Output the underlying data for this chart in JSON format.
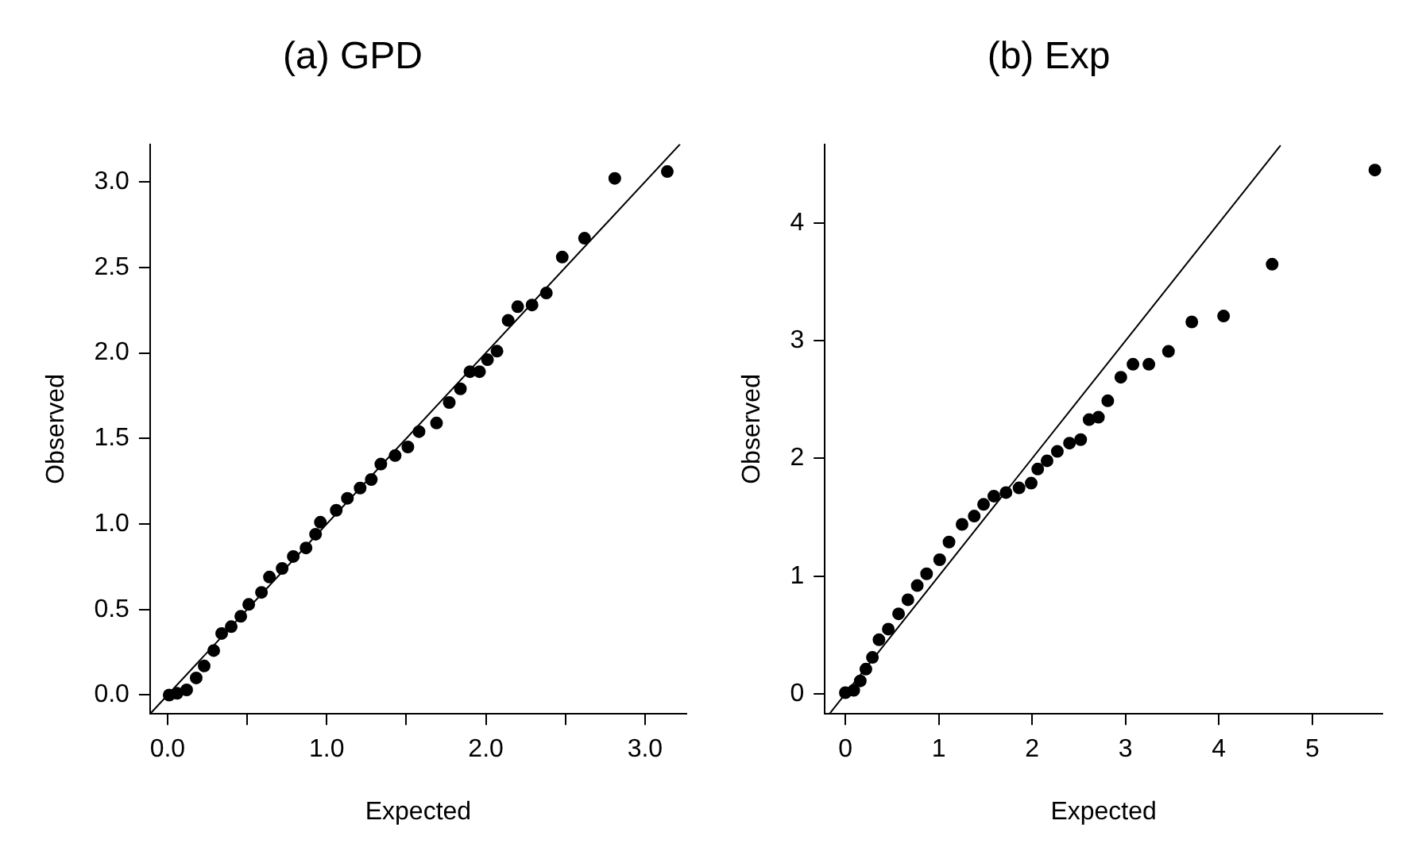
{
  "chart_data": [
    {
      "type": "scatter",
      "title": "(a) GPD",
      "xlabel": "Expected",
      "ylabel": "Observed",
      "xlim": [
        -0.11,
        3.26
      ],
      "ylim": [
        -0.11,
        3.22
      ],
      "xticks": [
        {
          "value": 0,
          "label": "0.0"
        },
        {
          "value": 0.5,
          "label": null
        },
        {
          "value": 1,
          "label": "1.0"
        },
        {
          "value": 1.5,
          "label": null
        },
        {
          "value": 2,
          "label": "2.0"
        },
        {
          "value": 2.5,
          "label": null
        },
        {
          "value": 3,
          "label": "3.0"
        }
      ],
      "yticks": [
        {
          "value": 0,
          "label": "0.0"
        },
        {
          "value": 0.5,
          "label": "0.5"
        },
        {
          "value": 1,
          "label": "1.0"
        },
        {
          "value": 1.5,
          "label": "1.5"
        },
        {
          "value": 2,
          "label": "2.0"
        },
        {
          "value": 2.5,
          "label": "2.5"
        },
        {
          "value": 3,
          "label": "3.0"
        }
      ],
      "grid": false,
      "legend": false,
      "marker": "circle",
      "series": [
        {
          "type": "scatter",
          "color": "#000000",
          "x": [
            0.01,
            0.06,
            0.12,
            0.18,
            0.23,
            0.29,
            0.34,
            0.4,
            0.46,
            0.51,
            0.59,
            0.64,
            0.72,
            0.79,
            0.87,
            0.93,
            0.96,
            1.06,
            1.13,
            1.21,
            1.28,
            1.34,
            1.43,
            1.51,
            1.58,
            1.69,
            1.77,
            1.84,
            1.9,
            1.96,
            2.01,
            2.07,
            2.14,
            2.2,
            2.29,
            2.38,
            2.48,
            2.62,
            2.81,
            3.14
          ],
          "values": [
            0.0,
            0.01,
            0.03,
            0.1,
            0.17,
            0.26,
            0.36,
            0.4,
            0.46,
            0.53,
            0.6,
            0.69,
            0.74,
            0.81,
            0.86,
            0.94,
            1.01,
            1.08,
            1.15,
            1.21,
            1.26,
            1.35,
            1.4,
            1.45,
            1.54,
            1.59,
            1.71,
            1.79,
            1.89,
            1.89,
            1.96,
            2.01,
            2.19,
            2.27,
            2.28,
            2.35,
            2.56,
            2.67,
            3.02,
            3.06
          ]
        },
        {
          "type": "line",
          "color": "#000000",
          "marker": "none",
          "x": [
            -0.11,
            3.22
          ],
          "values": [
            -0.11,
            3.22
          ]
        }
      ]
    },
    {
      "type": "scatter",
      "title": "(b) Exp",
      "xlabel": "Expected",
      "ylabel": "Observed",
      "xlim": [
        -0.22,
        5.75
      ],
      "ylim": [
        -0.17,
        4.67
      ],
      "xticks": [
        0,
        1,
        2,
        3,
        4,
        5
      ],
      "yticks": [
        0,
        1,
        2,
        3,
        4
      ],
      "grid": false,
      "legend": false,
      "marker": "circle",
      "series": [
        {
          "type": "scatter",
          "color": "#000000",
          "x": [
            0.0,
            0.09,
            0.16,
            0.22,
            0.29,
            0.36,
            0.46,
            0.57,
            0.67,
            0.77,
            0.87,
            1.01,
            1.11,
            1.25,
            1.38,
            1.48,
            1.59,
            1.72,
            1.86,
            1.99,
            2.06,
            2.16,
            2.27,
            2.4,
            2.52,
            2.61,
            2.71,
            2.81,
            2.95,
            3.08,
            3.25,
            3.46,
            3.71,
            4.05,
            4.57,
            5.67
          ],
          "values": [
            0.01,
            0.03,
            0.11,
            0.21,
            0.31,
            0.46,
            0.55,
            0.68,
            0.8,
            0.92,
            1.02,
            1.14,
            1.29,
            1.44,
            1.51,
            1.61,
            1.68,
            1.71,
            1.75,
            1.79,
            1.91,
            1.98,
            2.06,
            2.13,
            2.16,
            2.33,
            2.35,
            2.49,
            2.69,
            2.8,
            2.8,
            2.91,
            3.16,
            3.21,
            3.65,
            4.45
          ]
        },
        {
          "type": "line",
          "color": "#000000",
          "marker": "none",
          "x": [
            -0.17,
            4.66
          ],
          "values": [
            -0.17,
            4.66
          ]
        }
      ]
    }
  ]
}
